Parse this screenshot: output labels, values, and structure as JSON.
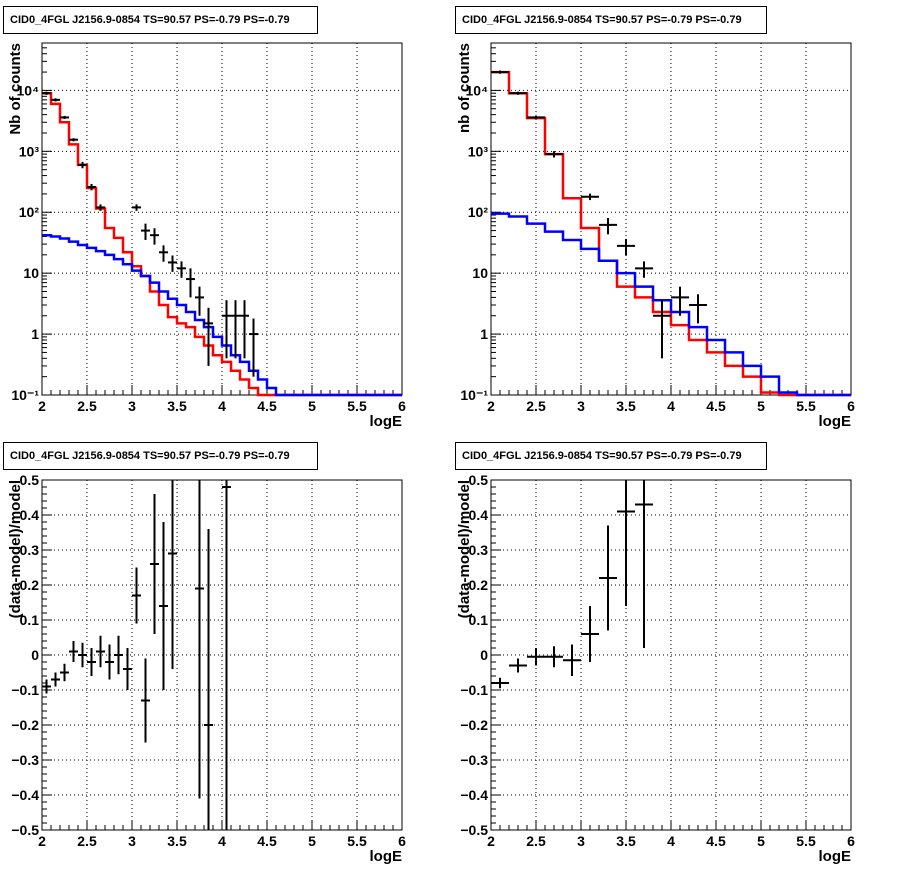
{
  "chart_data": [
    {
      "type": "line",
      "title": "CID0_4FGL J2156.9-0854 TS=90.57 PS=-0.79 PS=-0.79",
      "xlabel": "logE",
      "ylabel": "Nb of counts",
      "xlim": [
        2,
        6
      ],
      "ylim": [
        0.1,
        60000
      ],
      "yscale": "log",
      "grid": true,
      "xticks": [
        "2",
        "2.5",
        "3",
        "3.5",
        "4",
        "4.5",
        "5",
        "5.5",
        "6"
      ],
      "yticks": [
        {
          "v": 0.1,
          "label": "10⁻¹"
        },
        {
          "v": 1,
          "label": "1"
        },
        {
          "v": 10,
          "label": "10"
        },
        {
          "v": 100,
          "label": "10²"
        },
        {
          "v": 1000,
          "label": "10³"
        },
        {
          "v": 10000,
          "label": "10⁴"
        }
      ],
      "series": [
        {
          "role": "total-model",
          "color": "#ff0000",
          "step": 0.1,
          "x_start": 2.0,
          "values": [
            9000,
            6000,
            3000,
            1300,
            600,
            250,
            115,
            55,
            38,
            22,
            13,
            9,
            5,
            3,
            1.9,
            1.5,
            1.3,
            0.9,
            0.65,
            0.45,
            0.35,
            0.25,
            0.18,
            0.13,
            0.1,
            0.1,
            0.1,
            0.1,
            0.1,
            0.1,
            0.1,
            0.1,
            0.1,
            0.1,
            0.1,
            0.1,
            0.1,
            0.1,
            0.1,
            0.1
          ]
        },
        {
          "role": "background-model",
          "color": "#0000ff",
          "step": 0.1,
          "x_start": 2.0,
          "values": [
            42,
            40,
            37,
            33,
            29,
            26,
            23,
            20,
            17,
            14,
            11,
            9,
            7,
            5,
            3.8,
            3,
            2.3,
            1.7,
            1.3,
            0.9,
            0.65,
            0.45,
            0.35,
            0.25,
            0.18,
            0.13,
            0.1,
            0.1,
            0.1,
            0.1,
            0.1,
            0.1,
            0.1,
            0.1,
            0.1,
            0.1,
            0.1,
            0.1,
            0.1,
            0.1
          ]
        },
        {
          "role": "data",
          "color": "#000000",
          "type": "errorbar",
          "xerr": 0.05,
          "points": [
            [
              2.05,
              9000,
              0
            ],
            [
              2.15,
              7000,
              0
            ],
            [
              2.25,
              3600,
              0
            ],
            [
              2.35,
              1550,
              0
            ],
            [
              2.45,
              600,
              0
            ],
            [
              2.55,
              260,
              0
            ],
            [
              2.65,
              120,
              0
            ],
            [
              3.05,
              120,
              0
            ],
            [
              3.15,
              50,
              0
            ],
            [
              3.25,
              42,
              0
            ],
            [
              3.35,
              22,
              0
            ],
            [
              3.45,
              15,
              0
            ],
            [
              3.55,
              12,
              0
            ],
            [
              3.65,
              8,
              0
            ],
            [
              3.75,
              4,
              0
            ],
            [
              3.85,
              1.5,
              0
            ],
            [
              4.05,
              2,
              0
            ],
            [
              4.15,
              2,
              0
            ],
            [
              4.25,
              2,
              0
            ],
            [
              4.35,
              1,
              0
            ]
          ]
        }
      ]
    },
    {
      "type": "line",
      "title": "CID0_4FGL J2156.9-0854 TS=90.57 PS=-0.79 PS=-0.79",
      "xlabel": "logE",
      "ylabel": "nb of counts",
      "xlim": [
        2,
        6
      ],
      "ylim": [
        0.1,
        60000
      ],
      "yscale": "log",
      "grid": true,
      "xticks": [
        "2",
        "2.5",
        "3",
        "3.5",
        "4",
        "4.5",
        "5",
        "5.5",
        "6"
      ],
      "yticks": [
        {
          "v": 0.1,
          "label": "10⁻¹"
        },
        {
          "v": 1,
          "label": "1"
        },
        {
          "v": 10,
          "label": "10"
        },
        {
          "v": 100,
          "label": "10²"
        },
        {
          "v": 1000,
          "label": "10³"
        },
        {
          "v": 10000,
          "label": "10⁴"
        }
      ],
      "series": [
        {
          "role": "total-model",
          "color": "#ff0000",
          "step": 0.2,
          "x_start": 2.0,
          "values": [
            20000,
            9000,
            3500,
            900,
            170,
            55,
            16,
            6,
            4,
            2.3,
            1.4,
            0.8,
            0.5,
            0.3,
            0.2,
            0.11,
            0.1,
            0.1,
            0.1,
            0.1
          ]
        },
        {
          "role": "background-model",
          "color": "#0000ff",
          "step": 0.2,
          "x_start": 2.0,
          "values": [
            95,
            85,
            65,
            48,
            35,
            25,
            16,
            10,
            6,
            3.6,
            2.3,
            1.3,
            0.8,
            0.5,
            0.3,
            0.2,
            0.11,
            0.1,
            0.1,
            0.1
          ]
        },
        {
          "role": "data",
          "color": "#000000",
          "type": "errorbar",
          "xerr": 0.1,
          "points": [
            [
              2.1,
              20000,
              0
            ],
            [
              2.3,
              9000,
              0
            ],
            [
              2.5,
              3600,
              0
            ],
            [
              2.7,
              900,
              0
            ],
            [
              3.1,
              180,
              0
            ],
            [
              3.3,
              62,
              0
            ],
            [
              3.5,
              28,
              0
            ],
            [
              3.7,
              12,
              0
            ],
            [
              3.9,
              2,
              0
            ],
            [
              4.1,
              4,
              0
            ],
            [
              4.3,
              3,
              0
            ]
          ]
        }
      ]
    },
    {
      "type": "scatter",
      "title": "CID0_4FGL J2156.9-0854 TS=90.57 PS=-0.79 PS=-0.79",
      "xlabel": "logE",
      "ylabel": "(data-model)/model",
      "xlim": [
        2,
        6
      ],
      "ylim": [
        -0.5,
        0.5
      ],
      "grid": true,
      "xticks": [
        "2",
        "2.5",
        "3",
        "3.5",
        "4",
        "4.5",
        "5",
        "5.5",
        "6"
      ],
      "yticks": [
        {
          "v": -0.5,
          "label": "−0.5"
        },
        {
          "v": -0.4,
          "label": "−0.4"
        },
        {
          "v": -0.3,
          "label": "−0.3"
        },
        {
          "v": -0.2,
          "label": "−0.2"
        },
        {
          "v": -0.1,
          "label": "−0.1"
        },
        {
          "v": 0,
          "label": "0"
        },
        {
          "v": 0.1,
          "label": "0.1"
        },
        {
          "v": 0.2,
          "label": "0.2"
        },
        {
          "v": 0.3,
          "label": "0.3"
        },
        {
          "v": 0.4,
          "label": "0.4"
        },
        {
          "v": 0.5,
          "label": "0.5"
        }
      ],
      "series": [
        {
          "role": "residuals",
          "color": "#000000",
          "type": "errorbar",
          "xerr": 0.05,
          "points": [
            [
              2.05,
              -0.09,
              0.02
            ],
            [
              2.15,
              -0.07,
              0.02
            ],
            [
              2.25,
              -0.05,
              0.025
            ],
            [
              2.35,
              0.01,
              0.03
            ],
            [
              2.45,
              0.0,
              0.035
            ],
            [
              2.55,
              -0.02,
              0.04
            ],
            [
              2.65,
              0.01,
              0.045
            ],
            [
              2.75,
              -0.02,
              0.05
            ],
            [
              2.85,
              0.0,
              0.055
            ],
            [
              2.95,
              -0.04,
              0.06
            ],
            [
              3.05,
              0.17,
              0.08
            ],
            [
              3.15,
              -0.13,
              0.12
            ],
            [
              3.25,
              0.26,
              0.2
            ],
            [
              3.35,
              0.14,
              0.24
            ],
            [
              3.45,
              0.29,
              0.33
            ],
            [
              3.75,
              0.19,
              0.6
            ],
            [
              3.85,
              -0.2,
              0.56
            ],
            [
              4.05,
              0.48,
              0.99
            ]
          ]
        }
      ]
    },
    {
      "type": "scatter",
      "title": "CID0_4FGL J2156.9-0854 TS=90.57 PS=-0.79 PS=-0.79",
      "xlabel": "logE",
      "ylabel": "(data-model)/model",
      "xlim": [
        2,
        6
      ],
      "ylim": [
        -0.5,
        0.5
      ],
      "grid": true,
      "xticks": [
        "2",
        "2.5",
        "3",
        "3.5",
        "4",
        "4.5",
        "5",
        "5.5",
        "6"
      ],
      "yticks": [
        {
          "v": -0.5,
          "label": "−0.5"
        },
        {
          "v": -0.4,
          "label": "−0.4"
        },
        {
          "v": -0.3,
          "label": "−0.3"
        },
        {
          "v": -0.2,
          "label": "−0.2"
        },
        {
          "v": -0.1,
          "label": "−0.1"
        },
        {
          "v": 0,
          "label": "0"
        },
        {
          "v": 0.1,
          "label": "0.1"
        },
        {
          "v": 0.2,
          "label": "0.2"
        },
        {
          "v": 0.3,
          "label": "0.3"
        },
        {
          "v": 0.4,
          "label": "0.4"
        },
        {
          "v": 0.5,
          "label": "0.5"
        }
      ],
      "series": [
        {
          "role": "residuals",
          "color": "#000000",
          "type": "errorbar",
          "xerr": 0.1,
          "points": [
            [
              2.1,
              -0.08,
              0.015
            ],
            [
              2.3,
              -0.03,
              0.02
            ],
            [
              2.5,
              -0.005,
              0.025
            ],
            [
              2.7,
              -0.005,
              0.03
            ],
            [
              2.9,
              -0.015,
              0.045
            ],
            [
              3.1,
              0.06,
              0.08
            ],
            [
              3.3,
              0.22,
              0.15
            ],
            [
              3.5,
              0.41,
              0.27
            ],
            [
              3.7,
              0.43,
              0.41
            ]
          ]
        }
      ]
    }
  ]
}
